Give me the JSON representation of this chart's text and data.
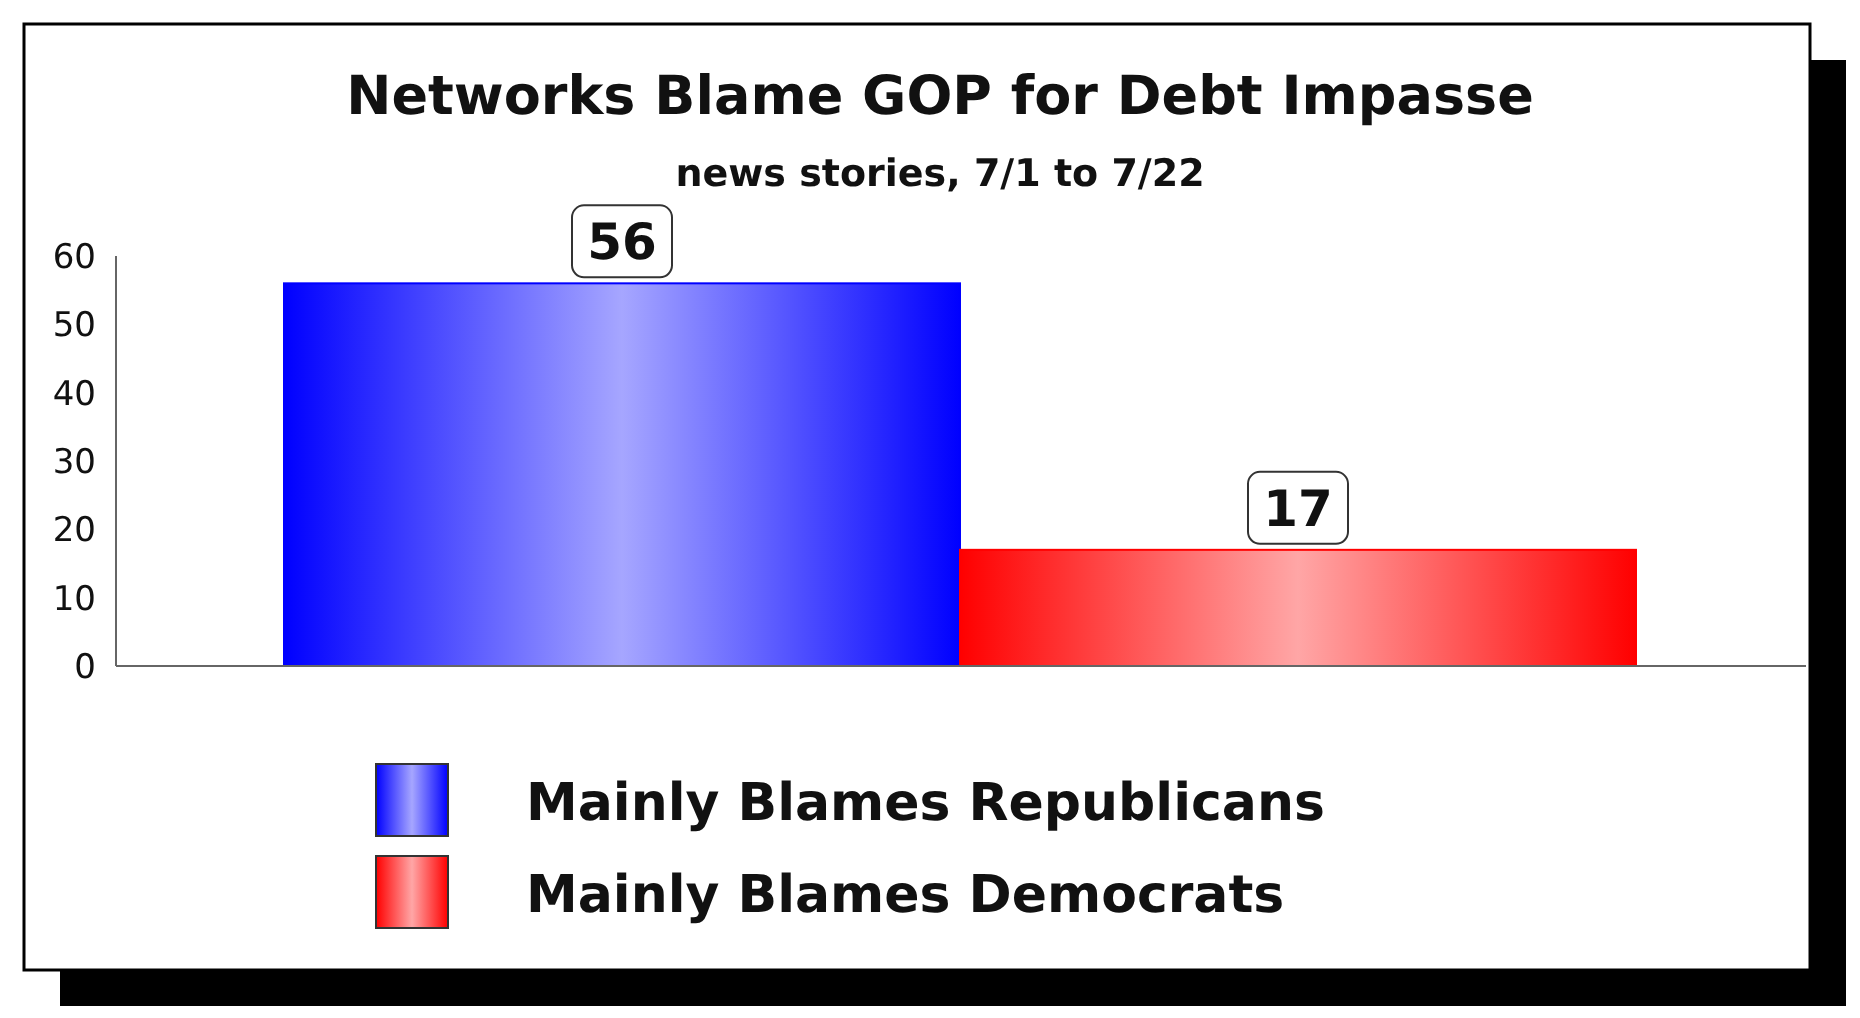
{
  "chart_data": {
    "type": "bar",
    "title": "Networks Blame GOP for Debt Impasse",
    "subtitle": "news stories, 7/1 to 7/22",
    "categories": [
      null,
      null
    ],
    "series": [
      {
        "name": "Mainly Blames Republicans",
        "color": "#0000ff",
        "values": [
          56,
          null
        ]
      },
      {
        "name": "Mainly Blames Democrats",
        "color": "#ff0000",
        "values": [
          null,
          17
        ]
      }
    ],
    "ylim": [
      0,
      60
    ],
    "yticks": [
      0,
      10,
      20,
      30,
      40,
      50,
      60
    ],
    "data_labels": true,
    "legend": "bottom",
    "grid": false
  }
}
